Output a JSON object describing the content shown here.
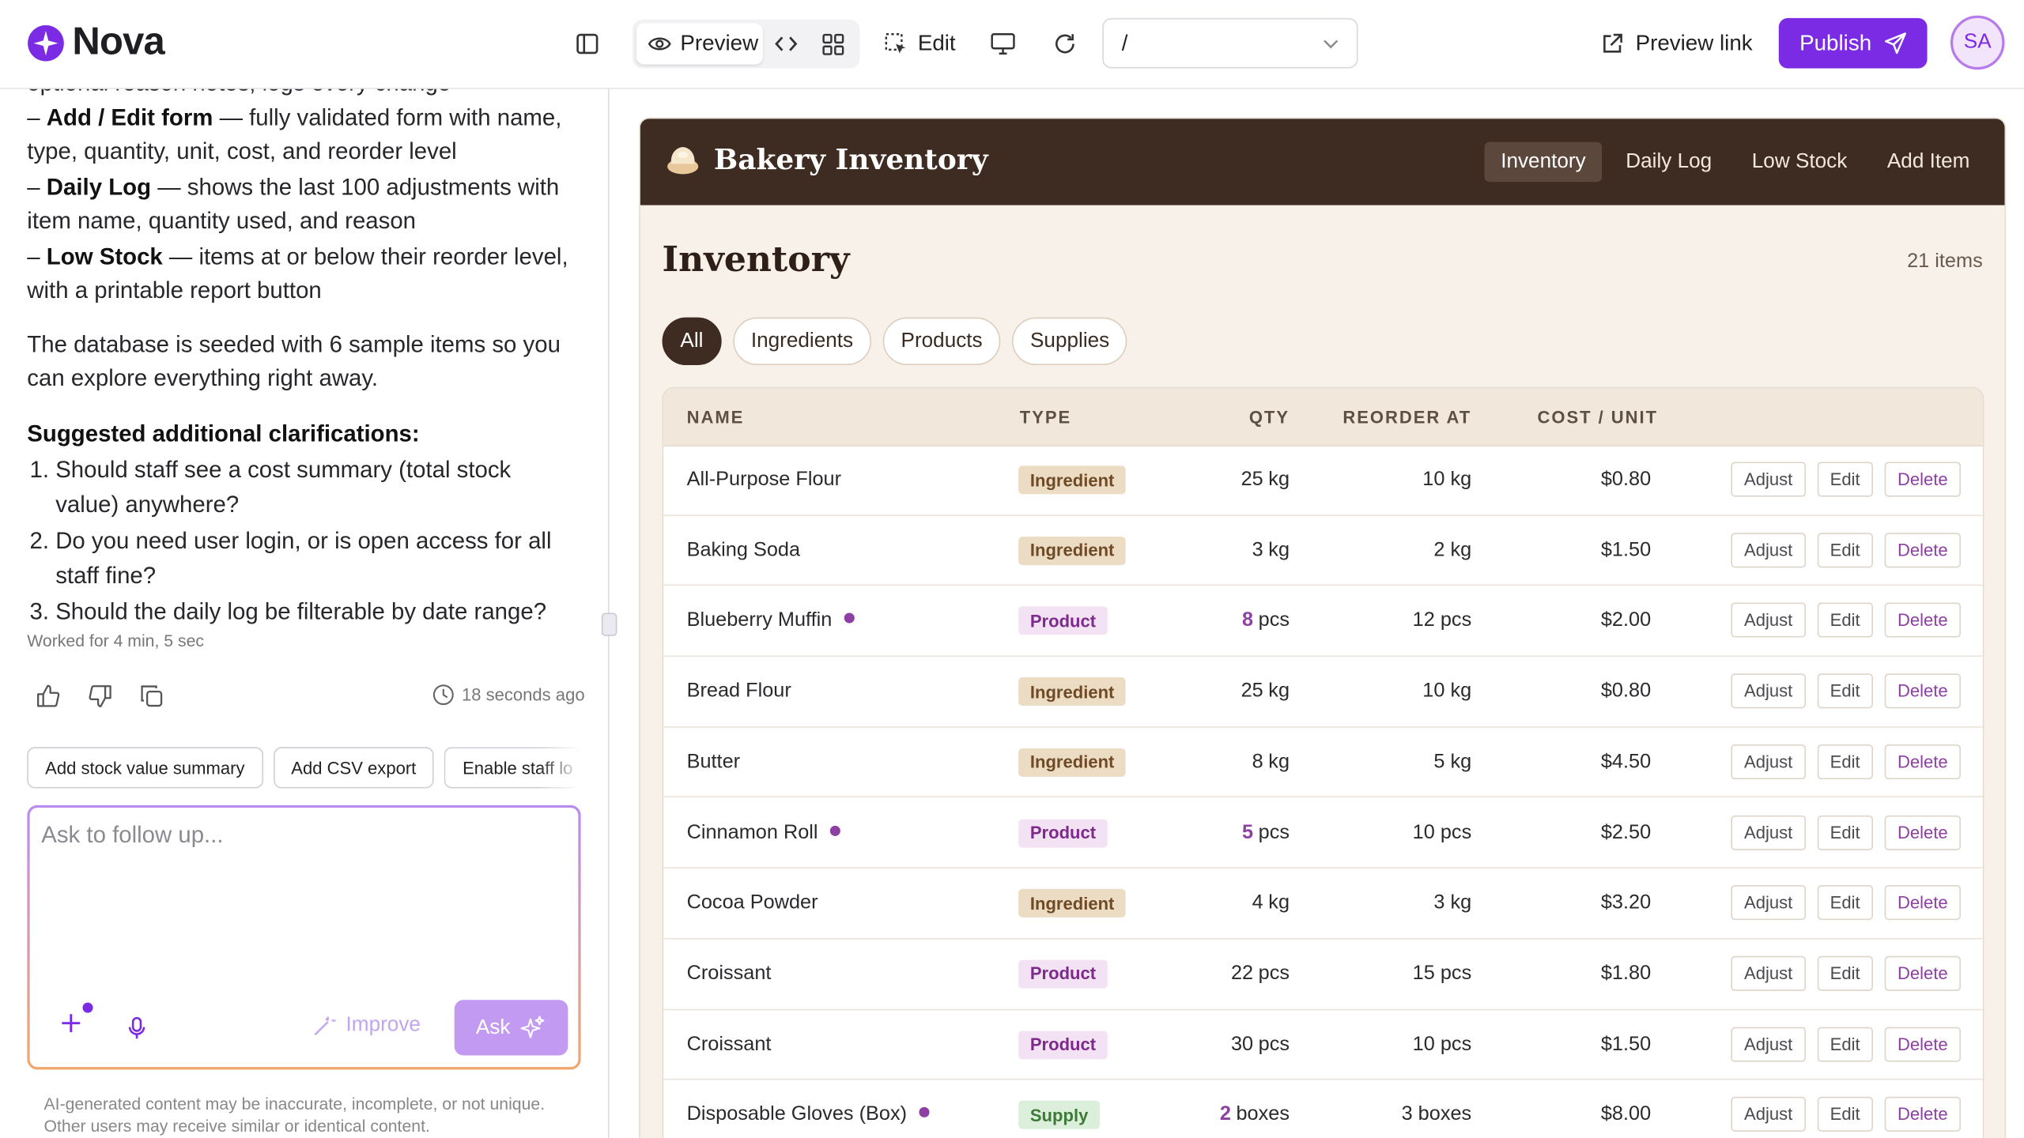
{
  "header": {
    "brand": "Nova",
    "preview": "Preview",
    "edit": "Edit",
    "route": "/",
    "preview_link": "Preview link",
    "publish": "Publish",
    "avatar": "SA"
  },
  "chat": {
    "truncated_line": "optional reason notes, logs every change",
    "bullets": [
      {
        "marker": "–",
        "label": "Add / Edit form",
        "text": "— fully validated form with name, type, quantity, unit, cost, and reorder level"
      },
      {
        "marker": "–",
        "label": "Daily Log",
        "text": "— shows the last 100 adjustments with item name, quantity used, and reason"
      },
      {
        "marker": "–",
        "label": "Low Stock",
        "text": "— items at or below their reorder level, with a printable report button"
      }
    ],
    "paragraph": "The database is seeded with 6 sample items so you can explore everything right away.",
    "clarifications_title": "Suggested additional clarifications:",
    "questions": [
      {
        "number": "1.",
        "text": "Should staff see a cost summary (total stock value) anywhere?"
      },
      {
        "number": "2.",
        "text": "Do you need user login, or is open access for all staff fine?"
      },
      {
        "number": "3.",
        "text": "Should the daily log be filterable by date range?"
      }
    ],
    "worked": "Worked for 4 min, 5 sec",
    "timestamp": "18 seconds ago",
    "suggestions": [
      "Add stock value summary",
      "Add CSV export",
      "Enable staff lo"
    ],
    "placeholder": "Ask to follow up...",
    "improve": "Improve",
    "ask": "Ask",
    "disclaimer": "AI-generated content may be inaccurate, incomplete, or not unique. Other users may receive similar or identical content."
  },
  "app": {
    "brand": "Bakery Inventory",
    "nav": [
      "Inventory",
      "Daily Log",
      "Low Stock",
      "Add Item"
    ],
    "title": "Inventory",
    "count": "21 items",
    "filters": [
      "All",
      "Ingredients",
      "Products",
      "Supplies"
    ],
    "table": {
      "columns": [
        "NAME",
        "TYPE",
        "QTY",
        "REORDER AT",
        "COST / UNIT"
      ],
      "actions": [
        "Adjust",
        "Edit",
        "Delete"
      ],
      "rows": [
        {
          "name": "All-Purpose Flour",
          "low": false,
          "type": "Ingredient",
          "qty": "25",
          "unit": "kg",
          "reorder": "10 kg",
          "cost": "$0.80"
        },
        {
          "name": "Baking Soda",
          "low": false,
          "type": "Ingredient",
          "qty": "3",
          "unit": "kg",
          "reorder": "2 kg",
          "cost": "$1.50"
        },
        {
          "name": "Blueberry Muffin",
          "low": true,
          "type": "Product",
          "qty": "8",
          "unit": "pcs",
          "reorder": "12 pcs",
          "cost": "$2.00"
        },
        {
          "name": "Bread Flour",
          "low": false,
          "type": "Ingredient",
          "qty": "25",
          "unit": "kg",
          "reorder": "10 kg",
          "cost": "$0.80"
        },
        {
          "name": "Butter",
          "low": false,
          "type": "Ingredient",
          "qty": "8",
          "unit": "kg",
          "reorder": "5 kg",
          "cost": "$4.50"
        },
        {
          "name": "Cinnamon Roll",
          "low": true,
          "type": "Product",
          "qty": "5",
          "unit": "pcs",
          "reorder": "10 pcs",
          "cost": "$2.50"
        },
        {
          "name": "Cocoa Powder",
          "low": false,
          "type": "Ingredient",
          "qty": "4",
          "unit": "kg",
          "reorder": "3 kg",
          "cost": "$3.20"
        },
        {
          "name": "Croissant",
          "low": false,
          "type": "Product",
          "qty": "22",
          "unit": "pcs",
          "reorder": "15 pcs",
          "cost": "$1.80"
        },
        {
          "name": "Croissant",
          "low": false,
          "type": "Product",
          "qty": "30",
          "unit": "pcs",
          "reorder": "10 pcs",
          "cost": "$1.50"
        },
        {
          "name": "Disposable Gloves (Box)",
          "low": true,
          "type": "Supply",
          "qty": "2",
          "unit": "boxes",
          "reorder": "3 boxes",
          "cost": "$8.00"
        }
      ]
    }
  }
}
